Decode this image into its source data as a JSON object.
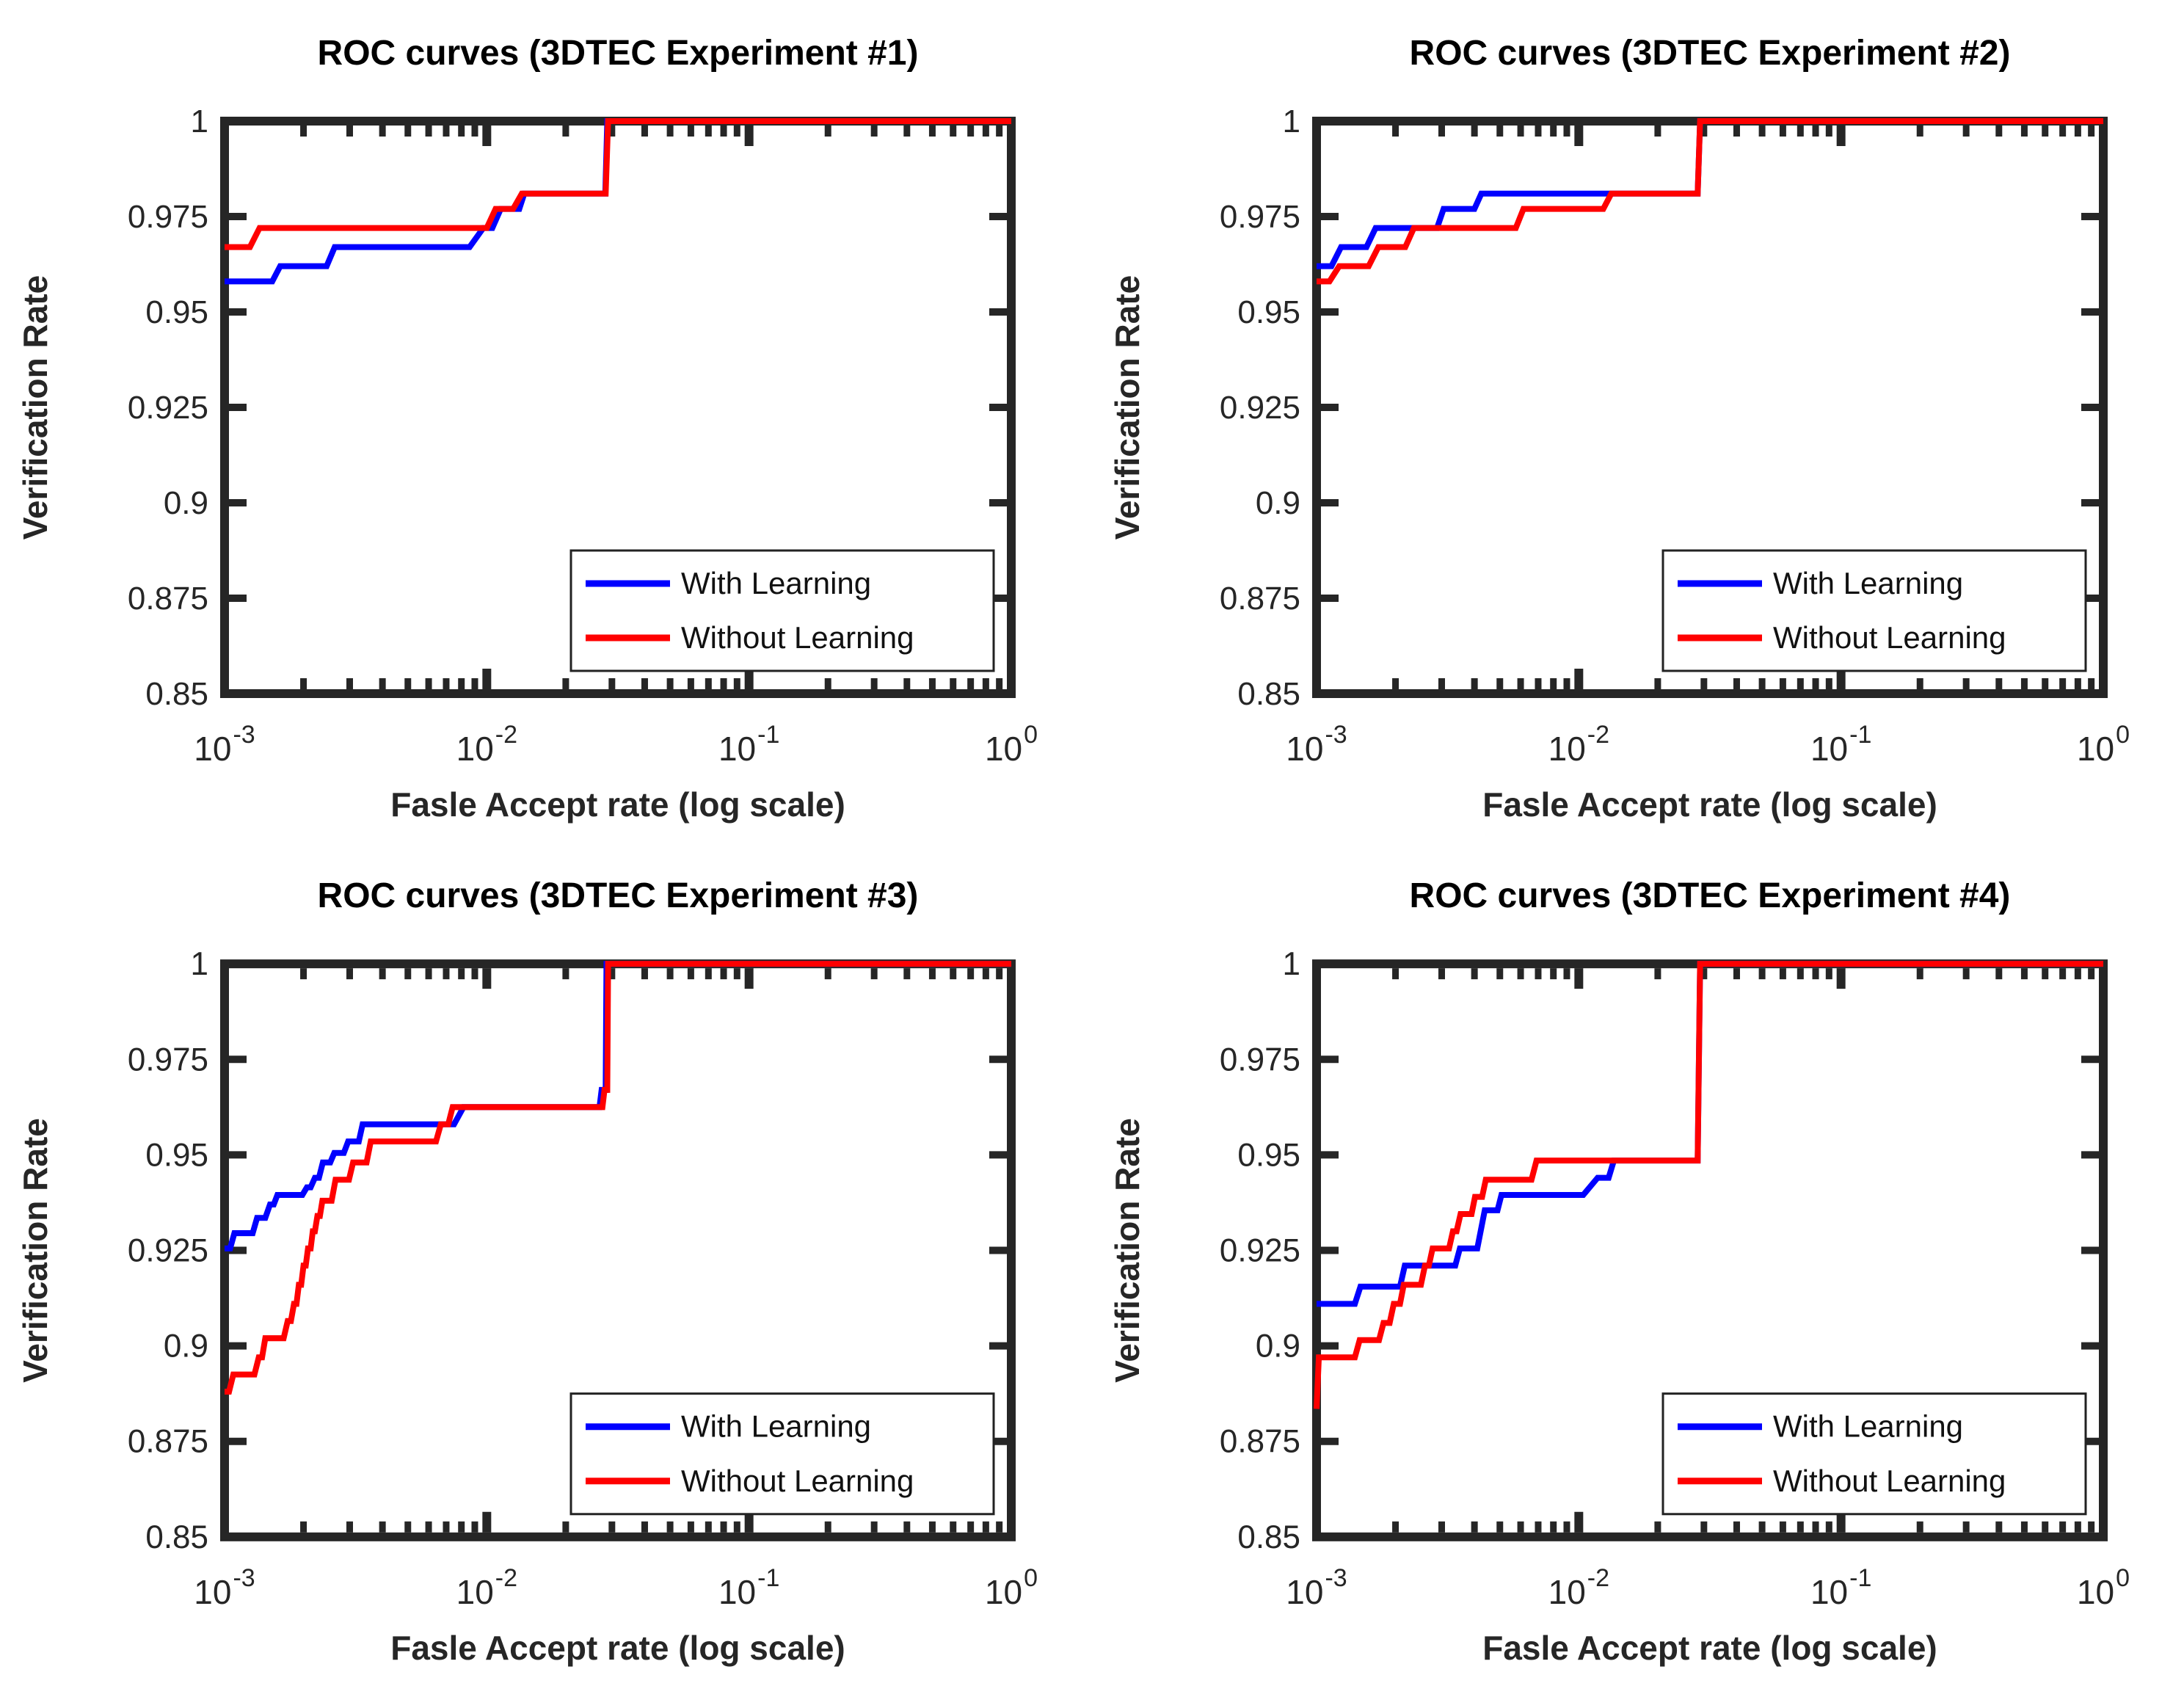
{
  "figure": {
    "background": "#ffffff",
    "colors": {
      "axis": "#262626",
      "tick_text": "#262626",
      "title_text": "#000000",
      "label_text": "#262626",
      "legend_border": "#222222",
      "legend_bg": "#ffffff",
      "with_learning": "#0000ff",
      "without_learning": "#ff0000"
    }
  },
  "chart_data": [
    {
      "type": "line",
      "title": "ROC curves (3DTEC Experiment #1)",
      "xlabel": "Fasle Accept rate (log scale)",
      "ylabel": "Verification Rate",
      "xscale": "log",
      "xlim": [
        0.001,
        1
      ],
      "ylim": [
        0.85,
        1.0
      ],
      "grid": false,
      "yticks": [
        {
          "v": 1,
          "label": "1"
        },
        {
          "v": 0.975,
          "label": "0.975"
        },
        {
          "v": 0.95,
          "label": "0.95"
        },
        {
          "v": 0.925,
          "label": "0.925"
        },
        {
          "v": 0.9,
          "label": "0.9"
        },
        {
          "v": 0.875,
          "label": "0.875"
        },
        {
          "v": 0.85,
          "label": "0.85"
        }
      ],
      "xticks": [
        {
          "v": 0.001,
          "base": "10",
          "exp": "-3"
        },
        {
          "v": 0.01,
          "base": "10",
          "exp": "-2"
        },
        {
          "v": 0.1,
          "base": "10",
          "exp": "-1"
        },
        {
          "v": 1,
          "base": "10",
          "exp": "0"
        }
      ],
      "legend": {
        "position": "lower right",
        "entries": [
          {
            "label": "With Learning",
            "color": "#0000ff"
          },
          {
            "label": "Without Learning",
            "color": "#ff0000"
          }
        ]
      },
      "series": [
        {
          "name": "With Learning",
          "color": "#0000ff",
          "points": [
            [
              0.001,
              0.958
            ],
            [
              0.00152,
              0.958
            ],
            [
              0.00163,
              0.962
            ],
            [
              0.00245,
              0.962
            ],
            [
              0.00263,
              0.967
            ],
            [
              0.0086,
              0.967
            ],
            [
              0.0097,
              0.972
            ],
            [
              0.0105,
              0.972
            ],
            [
              0.0113,
              0.977
            ],
            [
              0.0133,
              0.977
            ],
            [
              0.0139,
              0.981
            ],
            [
              0.0283,
              0.981
            ],
            [
              0.0288,
              1.0
            ],
            [
              1.0,
              1.0
            ]
          ]
        },
        {
          "name": "Without Learning",
          "color": "#ff0000",
          "points": [
            [
              0.001,
              0.967
            ],
            [
              0.00125,
              0.967
            ],
            [
              0.00136,
              0.972
            ],
            [
              0.01,
              0.972
            ],
            [
              0.0108,
              0.977
            ],
            [
              0.0126,
              0.977
            ],
            [
              0.0136,
              0.981
            ],
            [
              0.0284,
              0.981
            ],
            [
              0.029,
              1.0
            ],
            [
              1.0,
              1.0
            ]
          ]
        }
      ]
    },
    {
      "type": "line",
      "title": "ROC curves (3DTEC Experiment #2)",
      "xlabel": "Fasle Accept rate (log scale)",
      "ylabel": "Verification Rate",
      "xscale": "log",
      "xlim": [
        0.001,
        1
      ],
      "ylim": [
        0.85,
        1.0
      ],
      "grid": false,
      "yticks": [
        {
          "v": 1,
          "label": "1"
        },
        {
          "v": 0.975,
          "label": "0.975"
        },
        {
          "v": 0.95,
          "label": "0.95"
        },
        {
          "v": 0.925,
          "label": "0.925"
        },
        {
          "v": 0.9,
          "label": "0.9"
        },
        {
          "v": 0.875,
          "label": "0.875"
        },
        {
          "v": 0.85,
          "label": "0.85"
        }
      ],
      "xticks": [
        {
          "v": 0.001,
          "base": "10",
          "exp": "-3"
        },
        {
          "v": 0.01,
          "base": "10",
          "exp": "-2"
        },
        {
          "v": 0.1,
          "base": "10",
          "exp": "-1"
        },
        {
          "v": 1,
          "base": "10",
          "exp": "0"
        }
      ],
      "legend": {
        "position": "lower right",
        "entries": [
          {
            "label": "With Learning",
            "color": "#0000ff"
          },
          {
            "label": "Without Learning",
            "color": "#ff0000"
          }
        ]
      },
      "series": [
        {
          "name": "With Learning",
          "color": "#0000ff",
          "points": [
            [
              0.001,
              0.962
            ],
            [
              0.00114,
              0.962
            ],
            [
              0.00124,
              0.967
            ],
            [
              0.00155,
              0.967
            ],
            [
              0.00168,
              0.972
            ],
            [
              0.00288,
              0.972
            ],
            [
              0.00305,
              0.977
            ],
            [
              0.004,
              0.977
            ],
            [
              0.00425,
              0.981
            ],
            [
              0.0284,
              0.981
            ],
            [
              0.029,
              1.0
            ],
            [
              1.0,
              1.0
            ]
          ]
        },
        {
          "name": "Without Learning",
          "color": "#ff0000",
          "points": [
            [
              0.001,
              0.958
            ],
            [
              0.00112,
              0.958
            ],
            [
              0.00122,
              0.962
            ],
            [
              0.00158,
              0.962
            ],
            [
              0.00172,
              0.967
            ],
            [
              0.00218,
              0.967
            ],
            [
              0.00235,
              0.972
            ],
            [
              0.00575,
              0.972
            ],
            [
              0.00615,
              0.977
            ],
            [
              0.0124,
              0.977
            ],
            [
              0.0133,
              0.981
            ],
            [
              0.0284,
              0.981
            ],
            [
              0.029,
              1.0
            ],
            [
              1.0,
              1.0
            ]
          ]
        }
      ]
    },
    {
      "type": "line",
      "title": "ROC curves (3DTEC Experiment #3)",
      "xlabel": "Fasle Accept rate (log scale)",
      "ylabel": "Verification Rate",
      "xscale": "log",
      "xlim": [
        0.001,
        1
      ],
      "ylim": [
        0.85,
        1.0
      ],
      "grid": false,
      "yticks": [
        {
          "v": 1,
          "label": "1"
        },
        {
          "v": 0.975,
          "label": "0.975"
        },
        {
          "v": 0.95,
          "label": "0.95"
        },
        {
          "v": 0.925,
          "label": "0.925"
        },
        {
          "v": 0.9,
          "label": "0.9"
        },
        {
          "v": 0.875,
          "label": "0.875"
        },
        {
          "v": 0.85,
          "label": "0.85"
        }
      ],
      "xticks": [
        {
          "v": 0.001,
          "base": "10",
          "exp": "-3"
        },
        {
          "v": 0.01,
          "base": "10",
          "exp": "-2"
        },
        {
          "v": 0.1,
          "base": "10",
          "exp": "-1"
        },
        {
          "v": 1,
          "base": "10",
          "exp": "0"
        }
      ],
      "legend": {
        "position": "lower right",
        "entries": [
          {
            "label": "With Learning",
            "color": "#0000ff"
          },
          {
            "label": "Without Learning",
            "color": "#ff0000"
          }
        ]
      },
      "series": [
        {
          "name": "With Learning",
          "color": "#0000ff",
          "points": [
            [
              0.001,
              0.9255
            ],
            [
              0.00105,
              0.9255
            ],
            [
              0.00109,
              0.9295
            ],
            [
              0.00128,
              0.9295
            ],
            [
              0.00133,
              0.9335
            ],
            [
              0.00143,
              0.9335
            ],
            [
              0.00149,
              0.937
            ],
            [
              0.00154,
              0.937
            ],
            [
              0.00159,
              0.9395
            ],
            [
              0.00198,
              0.9395
            ],
            [
              0.00206,
              0.9415
            ],
            [
              0.00213,
              0.9415
            ],
            [
              0.00221,
              0.944
            ],
            [
              0.00229,
              0.944
            ],
            [
              0.00237,
              0.948
            ],
            [
              0.00253,
              0.948
            ],
            [
              0.00262,
              0.9505
            ],
            [
              0.00285,
              0.9505
            ],
            [
              0.00296,
              0.9535
            ],
            [
              0.00325,
              0.9535
            ],
            [
              0.00336,
              0.958
            ],
            [
              0.0075,
              0.958
            ],
            [
              0.00815,
              0.9625
            ],
            [
              0.0269,
              0.9625
            ],
            [
              0.0274,
              0.967
            ],
            [
              0.0284,
              0.967
            ],
            [
              0.0286,
              1.0
            ],
            [
              1.0,
              1.0
            ]
          ]
        },
        {
          "name": "Without Learning",
          "color": "#ff0000",
          "points": [
            [
              0.001,
              0.888
            ],
            [
              0.00104,
              0.888
            ],
            [
              0.00108,
              0.8925
            ],
            [
              0.0013,
              0.8925
            ],
            [
              0.00135,
              0.897
            ],
            [
              0.00139,
              0.897
            ],
            [
              0.00143,
              0.902
            ],
            [
              0.00168,
              0.902
            ],
            [
              0.00174,
              0.9065
            ],
            [
              0.00179,
              0.9065
            ],
            [
              0.00184,
              0.911
            ],
            [
              0.00188,
              0.911
            ],
            [
              0.00192,
              0.916
            ],
            [
              0.00196,
              0.916
            ],
            [
              0.002,
              0.921
            ],
            [
              0.00204,
              0.921
            ],
            [
              0.00208,
              0.9255
            ],
            [
              0.00213,
              0.9255
            ],
            [
              0.00217,
              0.93
            ],
            [
              0.00221,
              0.93
            ],
            [
              0.00226,
              0.934
            ],
            [
              0.00231,
              0.934
            ],
            [
              0.00236,
              0.938
            ],
            [
              0.00256,
              0.938
            ],
            [
              0.00265,
              0.9435
            ],
            [
              0.00298,
              0.9435
            ],
            [
              0.00309,
              0.948
            ],
            [
              0.00348,
              0.948
            ],
            [
              0.00361,
              0.9535
            ],
            [
              0.0064,
              0.9535
            ],
            [
              0.00668,
              0.958
            ],
            [
              0.00713,
              0.958
            ],
            [
              0.00741,
              0.9625
            ],
            [
              0.0276,
              0.9625
            ],
            [
              0.0281,
              0.967
            ],
            [
              0.0288,
              0.967
            ],
            [
              0.029,
              1.0
            ],
            [
              1.0,
              1.0
            ]
          ]
        }
      ]
    },
    {
      "type": "line",
      "title": "ROC curves (3DTEC Experiment #4)",
      "xlabel": "Fasle Accept rate (log scale)",
      "ylabel": "Verification Rate",
      "xscale": "log",
      "xlim": [
        0.001,
        1
      ],
      "ylim": [
        0.85,
        1.0
      ],
      "grid": false,
      "yticks": [
        {
          "v": 1,
          "label": "1"
        },
        {
          "v": 0.975,
          "label": "0.975"
        },
        {
          "v": 0.95,
          "label": "0.95"
        },
        {
          "v": 0.925,
          "label": "0.925"
        },
        {
          "v": 0.9,
          "label": "0.9"
        },
        {
          "v": 0.875,
          "label": "0.875"
        },
        {
          "v": 0.85,
          "label": "0.85"
        }
      ],
      "xticks": [
        {
          "v": 0.001,
          "base": "10",
          "exp": "-3"
        },
        {
          "v": 0.01,
          "base": "10",
          "exp": "-2"
        },
        {
          "v": 0.1,
          "base": "10",
          "exp": "-1"
        },
        {
          "v": 1,
          "base": "10",
          "exp": "0"
        }
      ],
      "legend": {
        "position": "lower right",
        "entries": [
          {
            "label": "With Learning",
            "color": "#0000ff"
          },
          {
            "label": "Without Learning",
            "color": "#ff0000"
          }
        ]
      },
      "series": [
        {
          "name": "With Learning",
          "color": "#0000ff",
          "points": [
            [
              0.001,
              0.911
            ],
            [
              0.0014,
              0.911
            ],
            [
              0.00147,
              0.9155
            ],
            [
              0.00208,
              0.9155
            ],
            [
              0.00217,
              0.921
            ],
            [
              0.00338,
              0.921
            ],
            [
              0.00352,
              0.9255
            ],
            [
              0.0041,
              0.9255
            ],
            [
              0.00438,
              0.9355
            ],
            [
              0.0049,
              0.9355
            ],
            [
              0.00507,
              0.9395
            ],
            [
              0.0104,
              0.9395
            ],
            [
              0.0118,
              0.944
            ],
            [
              0.013,
              0.944
            ],
            [
              0.0136,
              0.9485
            ],
            [
              0.0284,
              0.9485
            ],
            [
              0.029,
              1.0
            ],
            [
              1.0,
              1.0
            ]
          ]
        },
        {
          "name": "Without Learning",
          "color": "#ff0000",
          "points": [
            [
              0.001,
              0.8835
            ],
            [
              0.00102,
              0.897
            ],
            [
              0.0014,
              0.897
            ],
            [
              0.00146,
              0.9015
            ],
            [
              0.00173,
              0.9015
            ],
            [
              0.0018,
              0.906
            ],
            [
              0.0019,
              0.906
            ],
            [
              0.00197,
              0.911
            ],
            [
              0.00208,
              0.911
            ],
            [
              0.00215,
              0.916
            ],
            [
              0.0025,
              0.916
            ],
            [
              0.00259,
              0.921
            ],
            [
              0.00268,
              0.921
            ],
            [
              0.00277,
              0.9255
            ],
            [
              0.0032,
              0.9255
            ],
            [
              0.00331,
              0.93
            ],
            [
              0.00342,
              0.93
            ],
            [
              0.00354,
              0.9345
            ],
            [
              0.0039,
              0.9345
            ],
            [
              0.00402,
              0.939
            ],
            [
              0.00428,
              0.939
            ],
            [
              0.00442,
              0.9435
            ],
            [
              0.0066,
              0.9435
            ],
            [
              0.0069,
              0.9485
            ],
            [
              0.0284,
              0.9485
            ],
            [
              0.029,
              1.0
            ],
            [
              1.0,
              1.0
            ]
          ]
        }
      ]
    }
  ]
}
